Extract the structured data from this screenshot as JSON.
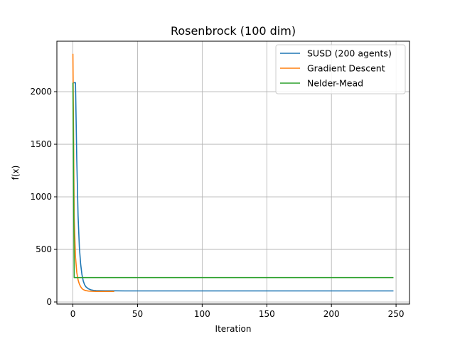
{
  "chart_data": {
    "type": "line",
    "title": "Rosenbrock (100 dim)",
    "xlabel": "Iteration",
    "ylabel": "f(x)",
    "xlim": [
      -12.4,
      260.4
    ],
    "ylim": [
      -20,
      2480
    ],
    "xticks": [
      0,
      50,
      100,
      150,
      200,
      250
    ],
    "yticks": [
      0,
      500,
      1000,
      1500,
      2000
    ],
    "grid": true,
    "legend_position": "top-right",
    "series": [
      {
        "name": "SUSD (200 agents)",
        "color": "#1f77b4",
        "x": [
          0,
          1,
          2,
          3,
          4,
          5,
          6,
          7,
          8,
          9,
          10,
          12,
          14,
          16,
          18,
          20,
          25,
          30,
          40,
          60,
          100,
          150,
          200,
          248
        ],
        "y": [
          2085,
          2085,
          2085,
          1350,
          820,
          520,
          360,
          260,
          200,
          165,
          145,
          125,
          115,
          110,
          108,
          107,
          106,
          106,
          105,
          105,
          105,
          105,
          105,
          105
        ]
      },
      {
        "name": "Gradient Descent",
        "color": "#ff7f0e",
        "x": [
          0,
          1,
          2,
          3,
          4,
          5,
          6,
          7,
          8,
          9,
          10,
          12,
          14,
          16,
          18,
          20,
          25,
          32
        ],
        "y": [
          2360,
          800,
          430,
          280,
          210,
          170,
          145,
          128,
          118,
          112,
          108,
          104,
          102,
          101,
          100,
          100,
          100,
          100
        ]
      },
      {
        "name": "Nelder-Mead",
        "color": "#2ca02c",
        "x": [
          0,
          1,
          248
        ],
        "y": [
          2085,
          232,
          232
        ]
      }
    ]
  }
}
